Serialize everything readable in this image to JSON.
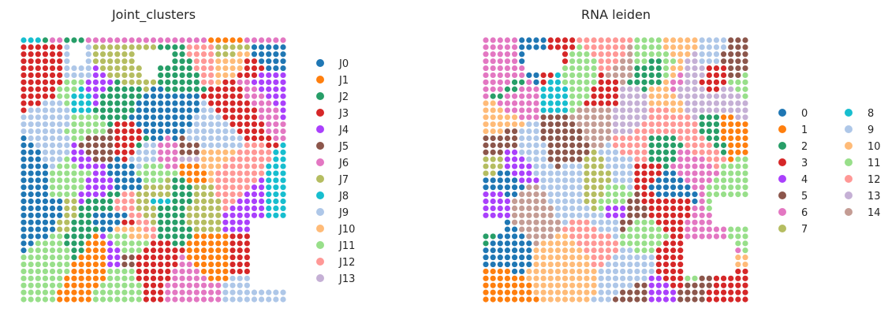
{
  "figure": {
    "background": "#ffffff"
  },
  "chart_data": [
    {
      "type": "scatter",
      "title": "Joint_clusters",
      "xlabel": "",
      "ylabel": "",
      "grid": false,
      "legend_position": "right",
      "legend": [
        "J0",
        "J1",
        "J2",
        "J3",
        "J4",
        "J5",
        "J6",
        "J7",
        "J8",
        "J9",
        "J10",
        "J11",
        "J12",
        "J13"
      ],
      "palette": [
        "#1f77b4",
        "#ff7f0e",
        "#279e68",
        "#d62728",
        "#aa40fc",
        "#8c564b",
        "#e377c2",
        "#b5bd61",
        "#17becf",
        "#aec7e8",
        "#ffbb78",
        "#98df8a",
        "#ff9896",
        "#c5b0d5"
      ],
      "grid_size": {
        "cols": 37,
        "rows": 38
      },
      "category_points": [
        [
          0,
          0,
          8
        ],
        [
          1,
          0,
          8
        ],
        [
          2,
          0,
          8
        ],
        [
          3,
          0,
          2
        ],
        [
          4,
          0,
          6
        ],
        [
          5,
          0,
          6
        ],
        [
          6,
          0,
          2
        ],
        [
          7,
          0,
          2
        ],
        [
          8,
          0,
          2
        ],
        [
          9,
          0,
          6
        ],
        [
          10,
          0,
          6
        ],
        [
          11,
          0,
          6
        ],
        [
          12,
          0,
          6
        ],
        [
          13,
          0,
          6
        ],
        [
          14,
          0,
          6
        ],
        [
          15,
          0,
          6
        ],
        [
          16,
          0,
          6
        ],
        [
          17,
          0,
          6
        ],
        [
          18,
          0,
          6
        ],
        [
          19,
          0,
          6
        ],
        [
          20,
          0,
          6
        ],
        [
          21,
          0,
          6
        ],
        [
          22,
          0,
          6
        ],
        [
          23,
          0,
          6
        ],
        [
          24,
          0,
          6
        ],
        [
          25,
          0,
          6
        ],
        [
          26,
          0,
          1
        ],
        [
          27,
          0,
          1
        ],
        [
          28,
          0,
          1
        ],
        [
          29,
          0,
          1
        ],
        [
          30,
          0,
          1
        ],
        [
          31,
          0,
          6
        ],
        [
          32,
          0,
          6
        ],
        [
          33,
          0,
          6
        ],
        [
          34,
          0,
          6
        ],
        [
          35,
          0,
          6
        ],
        [
          36,
          0,
          6
        ]
      ]
    },
    {
      "type": "scatter",
      "title": "RNA leiden",
      "xlabel": "",
      "ylabel": "",
      "grid": false,
      "legend_position": "right",
      "legend_columns": 2,
      "legend": [
        "0",
        "1",
        "2",
        "3",
        "4",
        "5",
        "6",
        "7",
        "8",
        "9",
        "10",
        "11",
        "12",
        "13",
        "14"
      ],
      "palette": [
        "#1f77b4",
        "#ff7f0e",
        "#279e68",
        "#d62728",
        "#aa40fc",
        "#8c564b",
        "#e377c2",
        "#b5bd61",
        "#17becf",
        "#aec7e8",
        "#ffbb78",
        "#98df8a",
        "#ff9896",
        "#c5b0d5",
        "#c49c94"
      ],
      "grid_size": {
        "cols": 37,
        "rows": 38
      }
    }
  ]
}
